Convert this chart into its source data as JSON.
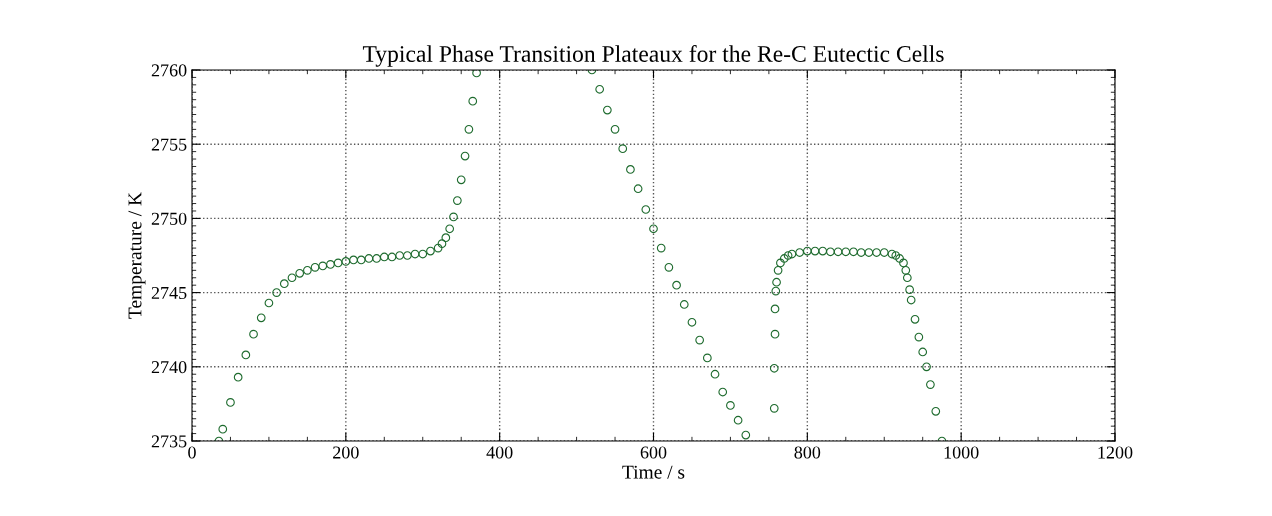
{
  "chart_data": {
    "type": "scatter",
    "title": "Typical Phase Transition Plateaux for the Re-C Eutectic Cells",
    "xlabel": "Time / s",
    "ylabel": "Temperature / K",
    "xlim": [
      0,
      1200
    ],
    "xticks": [
      0,
      200,
      400,
      600,
      800,
      1000,
      1200
    ],
    "ylim": [
      2735,
      2760
    ],
    "yticks": [
      2735,
      2740,
      2745,
      2750,
      2755,
      2760
    ],
    "grid": true,
    "marker": "circle",
    "series": [
      {
        "color": "#1e6b2e",
        "x": [
          35,
          40,
          50,
          60,
          70,
          80,
          90,
          100,
          110,
          120,
          130,
          140,
          150,
          160,
          170,
          180,
          190,
          200,
          210,
          220,
          230,
          240,
          250,
          260,
          270,
          280,
          290,
          300,
          310,
          320,
          325,
          330,
          335,
          340,
          345,
          350,
          355,
          360,
          365,
          370,
          520,
          530,
          540,
          550,
          560,
          570,
          580,
          590,
          600,
          610,
          620,
          630,
          640,
          650,
          660,
          670,
          680,
          690,
          700,
          710,
          720,
          757,
          757,
          758,
          758,
          759,
          760,
          762,
          765,
          770,
          775,
          780,
          790,
          800,
          810,
          820,
          830,
          840,
          850,
          860,
          870,
          880,
          890,
          900,
          910,
          915,
          920,
          925,
          928,
          930,
          933,
          935,
          940,
          945,
          950,
          955,
          960,
          967,
          975
        ],
        "values": [
          2735,
          2735.8,
          2737.6,
          2739.3,
          2740.8,
          2742.2,
          2743.3,
          2744.3,
          2745.0,
          2745.6,
          2746.0,
          2746.3,
          2746.5,
          2746.7,
          2746.8,
          2746.9,
          2747.0,
          2747.1,
          2747.2,
          2747.2,
          2747.3,
          2747.3,
          2747.4,
          2747.4,
          2747.5,
          2747.5,
          2747.6,
          2747.6,
          2747.8,
          2748.0,
          2748.3,
          2748.7,
          2749.3,
          2750.1,
          2751.2,
          2752.6,
          2754.2,
          2756.0,
          2757.9,
          2759.8,
          2760,
          2758.7,
          2757.3,
          2756.0,
          2754.7,
          2753.3,
          2752.0,
          2750.6,
          2749.3,
          2748.0,
          2746.7,
          2745.5,
          2744.2,
          2743.0,
          2741.8,
          2740.6,
          2739.5,
          2738.3,
          2737.4,
          2736.4,
          2735.4,
          2737.2,
          2739.9,
          2742.2,
          2743.9,
          2745.1,
          2745.7,
          2746.5,
          2747.0,
          2747.3,
          2747.5,
          2747.6,
          2747.7,
          2747.8,
          2747.8,
          2747.8,
          2747.75,
          2747.75,
          2747.75,
          2747.75,
          2747.7,
          2747.7,
          2747.7,
          2747.7,
          2747.6,
          2747.5,
          2747.3,
          2747.0,
          2746.5,
          2746.0,
          2745.2,
          2744.5,
          2743.2,
          2742.0,
          2741.0,
          2740.0,
          2738.8,
          2737.0,
          2735.0
        ]
      }
    ]
  }
}
